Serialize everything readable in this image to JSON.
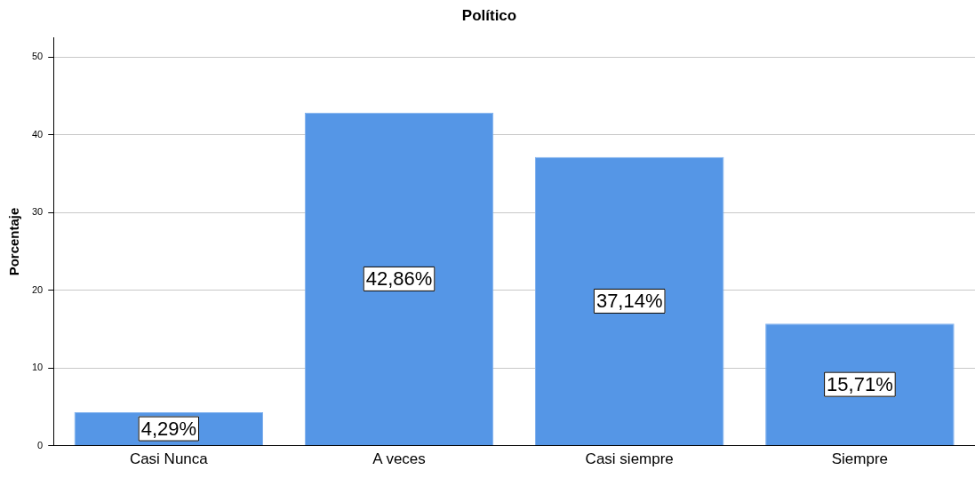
{
  "chart_data": {
    "type": "bar",
    "title": "Político",
    "ylabel": "Porcentaje",
    "categories": [
      "Casi Nunca",
      "A veces",
      "Casi siempre",
      "Siempre"
    ],
    "values": [
      4.29,
      42.86,
      37.14,
      15.71
    ],
    "value_labels": [
      "4,29%",
      "42,86%",
      "37,14%",
      "15,71%"
    ],
    "color": "#5596e6",
    "ylim": [
      0,
      52.5
    ],
    "yticks": [
      0,
      10,
      20,
      30,
      40,
      50
    ],
    "grid": "y",
    "legend": false
  }
}
